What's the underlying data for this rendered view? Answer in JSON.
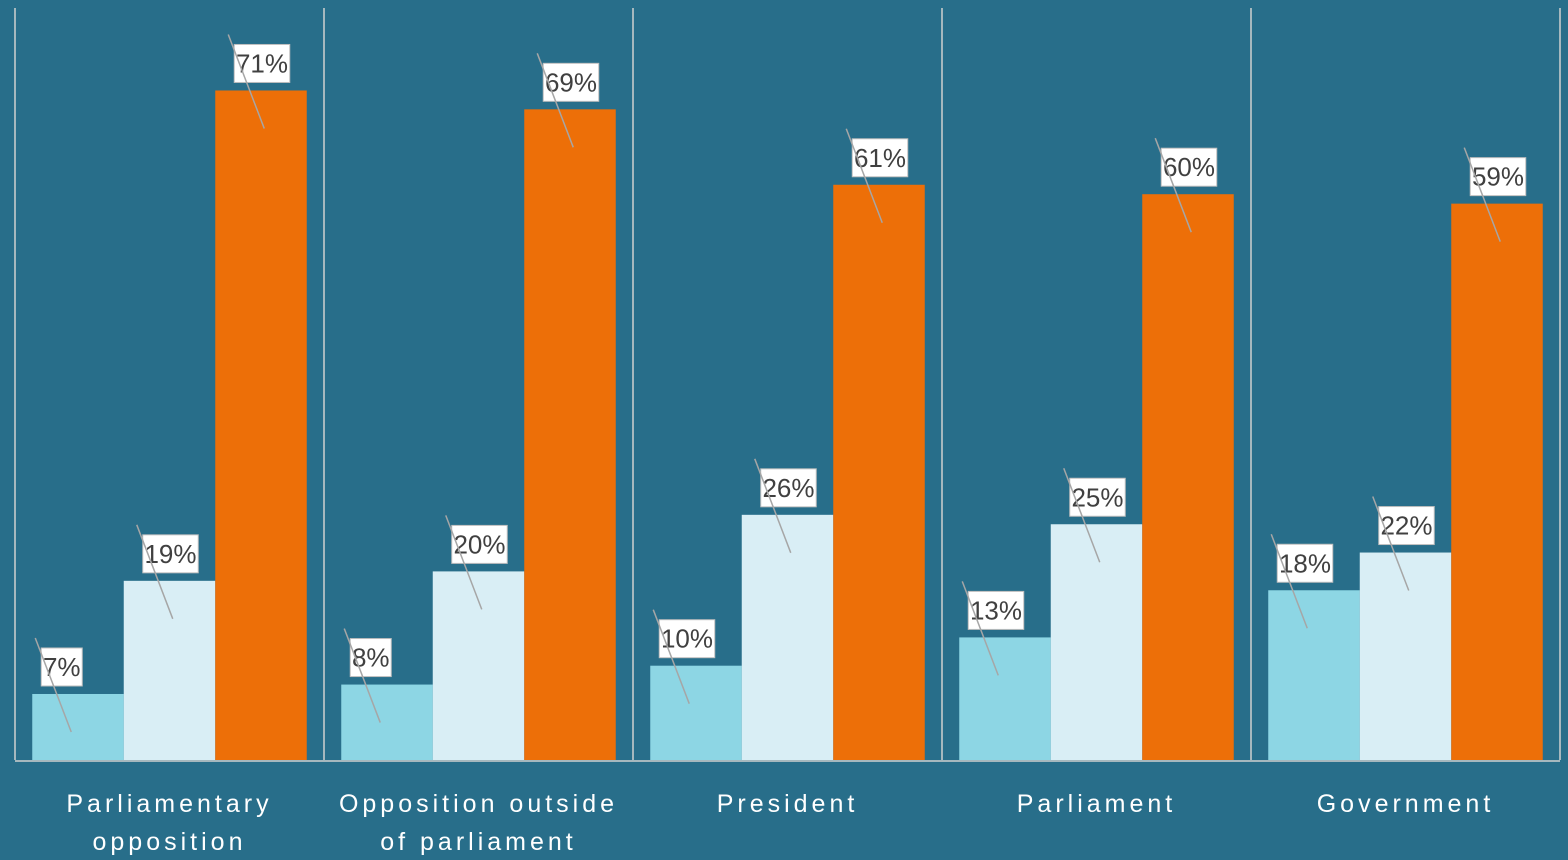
{
  "chart_data": {
    "type": "bar",
    "categories": [
      [
        "Parliamentary",
        "opposition"
      ],
      [
        "Opposition outside",
        "of parliament"
      ],
      [
        "President"
      ],
      [
        "Parliament"
      ],
      [
        "Government"
      ]
    ],
    "series": [
      {
        "values": [
          7,
          8,
          10,
          13,
          18
        ],
        "color": "#8dd6e4"
      },
      {
        "values": [
          19,
          20,
          26,
          25,
          22
        ],
        "color": "#d9eef5"
      },
      {
        "values": [
          71,
          69,
          61,
          60,
          59
        ],
        "color": "#ed6f08"
      }
    ],
    "value_suffix": "%",
    "ylim": [
      0,
      80
    ],
    "grid": false,
    "legend": "none",
    "background": "#286e8a",
    "divider_color": "#d0d0d0"
  }
}
